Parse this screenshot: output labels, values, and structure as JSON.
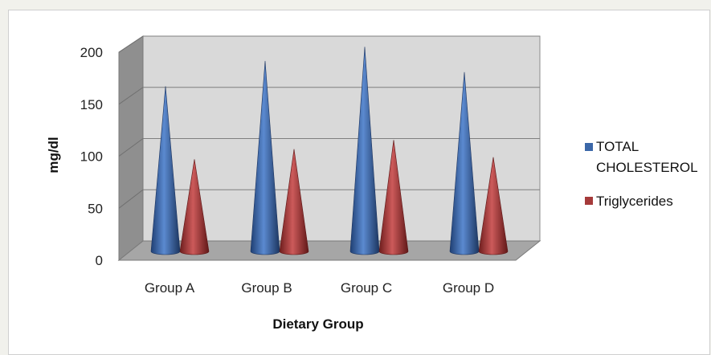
{
  "chart_data": {
    "type": "bar",
    "style": "3d-cone",
    "title": "",
    "xlabel": "Dietary Group",
    "ylabel": "mg/dl",
    "ylim": [
      0,
      200
    ],
    "yticks": [
      "0",
      "50",
      "100",
      "150",
      "200"
    ],
    "grid": true,
    "legend_position": "right",
    "categories": [
      "Group A",
      "Group B",
      "Group C",
      "Group D"
    ],
    "series": [
      {
        "name": "TOTAL CHOLESTEROL",
        "values": [
          163,
          188,
          202,
          177
        ],
        "color": "#3b67a8"
      },
      {
        "name": "Triglycerides",
        "values": [
          91,
          101,
          110,
          93
        ],
        "color": "#a53a3a"
      }
    ]
  }
}
